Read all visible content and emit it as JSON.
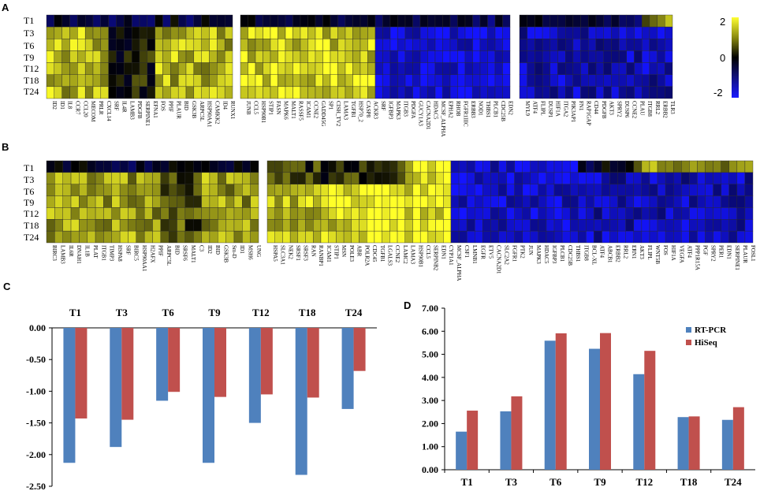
{
  "panels": {
    "a": "A",
    "b": "B",
    "c": "C",
    "d": "D"
  },
  "rows": [
    "T1",
    "T3",
    "T6",
    "T9",
    "T12",
    "T18",
    "T24"
  ],
  "colorbar": {
    "ticks": [
      "2",
      "0",
      "-2"
    ],
    "low": "#1a1aff",
    "mid": "#000000",
    "high": "#ffff33"
  },
  "heatmap_a": {
    "blocks": [
      {
        "genes": [
          "ID2",
          "ID1",
          "IL8",
          "CCR7",
          "CCL20",
          "MECOM",
          "PRLR",
          "CXCL14",
          "SRF",
          "IL4R",
          "LAMB3",
          "PDGFB",
          "SERPINE1",
          "EFNA1",
          "FOS",
          "PPIF",
          "PLAUR",
          "BID",
          "GSK3B",
          "ARPC5L",
          "HSP90AA1",
          "CAMKK2",
          "ID4",
          "RUNX1"
        ]
      },
      {
        "genes": [
          "JUNB",
          "CCL5",
          "HSP90B1",
          "STIP1",
          "FASN",
          "MAPK6",
          "MALT1",
          "RASSF5",
          "ICAM1",
          "CCNE2",
          "GADD45G",
          "SP1",
          "CISH_TV2",
          "LAMA3",
          "TGFB1",
          "HSP70_2",
          "CASP8",
          "ACKR3",
          "SRF",
          "IGFBP3",
          "MAPK3",
          "ITGB3",
          "PDGFA",
          "GUCY1A3",
          "CACNA2D1",
          "HDAC5",
          "MCSF_ALPHA",
          "EPHA2",
          "RHOB",
          "FGFR1IIIC",
          "ERBB3",
          "NOD1",
          "THBS1",
          "PLCB1",
          "CDC25B",
          "EDN2"
        ]
      },
      {
        "genes": [
          "MYL9",
          "ATF4",
          "FLIPL",
          "DUSP1",
          "HIF1A",
          "ITGA2",
          "PIK3AP1",
          "FN1",
          "RAP1GAP",
          "CD44",
          "PDGFB",
          "AKT3",
          "SPRY2",
          "DUSP6",
          "CCNE2",
          "PLAU",
          "ITGB8",
          "RRL2",
          "ERBB2",
          "TLR3"
        ]
      }
    ]
  },
  "heatmap_b": {
    "blocks": [
      {
        "genes": [
          "BIRC3",
          "LAMB3",
          "IL6R",
          "DNAH1",
          "IL1B",
          "PLAT",
          "ITGB1",
          "TIMP3",
          "HSPA8",
          "SRF",
          "BIRC5",
          "HSP90AA1",
          "H2AFX",
          "PPIF",
          "ARPC5L",
          "BID",
          "SRSF6",
          "MALT1",
          "C3",
          "ID2",
          "BID",
          "GSK3B",
          "Sm-D",
          "ID1",
          "MSH6",
          "UNG"
        ]
      },
      {
        "genes": [
          "HSPA5",
          "SLC3A1",
          "NEK2",
          "SRSF1",
          "SRSF3",
          "RAN",
          "RANBP1",
          "ICAM1",
          "STIP1",
          "MSN",
          "POLE3",
          "ABR",
          "POLR2A",
          "CDC45",
          "TGFB1",
          "LGALS3",
          "CCNE2",
          "LAMC2",
          "LAMA3",
          "HSP90B1",
          "CCL5",
          "SERPINB2",
          "EDN1",
          "CYP1A1"
        ]
      },
      {
        "genes": [
          "MCSF_ALPHA",
          "CSF1",
          "LMNB1",
          "EGFR",
          "ETV5",
          "CACNA2D1",
          "SLC2A2",
          "FGFR1",
          "PTK2",
          "JUN",
          "MAPK3",
          "HDAC5",
          "IGFBP3",
          "PLCB1",
          "CDC25B",
          "THBS1",
          "ITGB8",
          "BCL-XL",
          "ATF4",
          "ABCB1",
          "ERBB2",
          "RRL2",
          "ERN1",
          "AKT3",
          "FLIPL",
          "WNT5B",
          "FOS",
          "HIF1A",
          "VEGFA",
          "ATF4",
          "PPP1R15A",
          "PGF",
          "SPRY2",
          "PER1",
          "EDN1",
          "SERPINE1",
          "PLAUR",
          "FOSL1"
        ]
      }
    ]
  },
  "chart_data": [
    {
      "type": "bar",
      "title": "",
      "categories": [
        "T1",
        "T3",
        "T6",
        "T9",
        "T12",
        "T18",
        "T24"
      ],
      "series": [
        {
          "name": "RT-PCR",
          "color": "#4f81bd",
          "values": [
            -2.13,
            -1.88,
            -1.15,
            -2.13,
            -1.5,
            -2.32,
            -1.28
          ]
        },
        {
          "name": "HiSeq",
          "color": "#c0504d",
          "values": [
            -1.43,
            -1.45,
            -1.01,
            -1.09,
            -1.05,
            -1.1,
            -0.68
          ]
        }
      ],
      "xlabel": "",
      "ylabel": "",
      "ylim": [
        -2.5,
        0.0
      ],
      "yticks": [
        "0.00",
        "-0.50",
        "-1.00",
        "-1.50",
        "-2.00",
        "-2.50"
      ],
      "legend": "none",
      "categories_position": "top"
    },
    {
      "type": "bar",
      "title": "",
      "categories": [
        "T1",
        "T3",
        "T6",
        "T9",
        "T12",
        "T18",
        "T24"
      ],
      "series": [
        {
          "name": "RT-PCR",
          "color": "#4f81bd",
          "values": [
            1.65,
            2.53,
            5.59,
            5.24,
            4.14,
            2.28,
            2.16
          ]
        },
        {
          "name": "HiSeq",
          "color": "#c0504d",
          "values": [
            2.56,
            3.18,
            5.91,
            5.92,
            5.15,
            2.31,
            2.71
          ]
        }
      ],
      "xlabel": "",
      "ylabel": "",
      "ylim": [
        0.0,
        7.0
      ],
      "yticks": [
        "0.00",
        "1.00",
        "2.00",
        "3.00",
        "4.00",
        "5.00",
        "6.00",
        "7.00"
      ],
      "legend": "top-right"
    }
  ]
}
